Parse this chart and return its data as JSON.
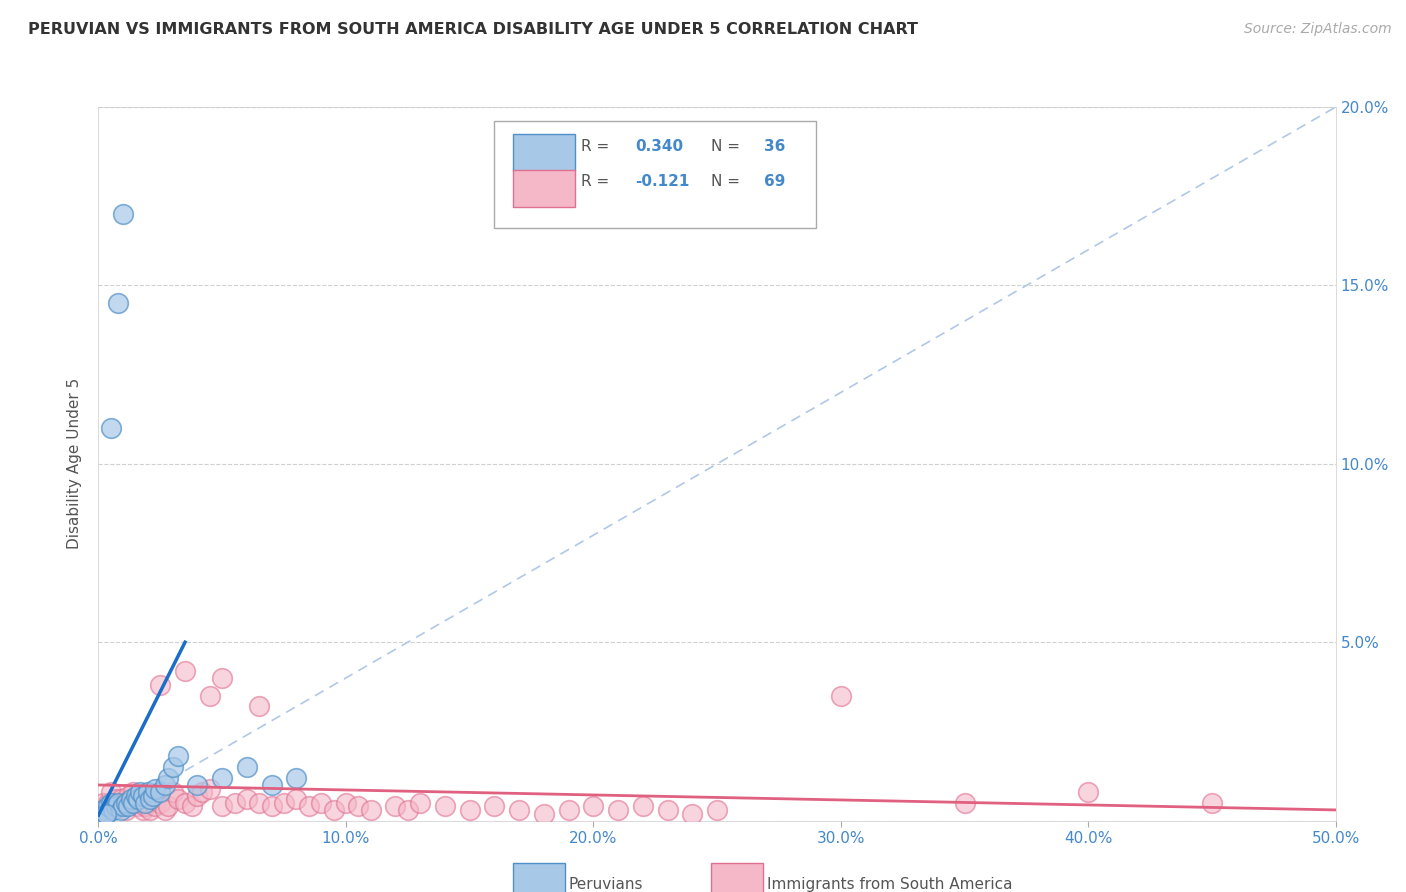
{
  "title": "PERUVIAN VS IMMIGRANTS FROM SOUTH AMERICA DISABILITY AGE UNDER 5 CORRELATION CHART",
  "source": "Source: ZipAtlas.com",
  "ylabel": "Disability Age Under 5",
  "legend_blue_label": "Peruvians",
  "legend_pink_label": "Immigrants from South America",
  "r_blue": 0.34,
  "n_blue": 36,
  "r_pink": -0.121,
  "n_pink": 69,
  "xlim": [
    0,
    50
  ],
  "ylim": [
    0,
    20
  ],
  "background_color": "#ffffff",
  "grid_color": "#d0d0d0",
  "blue_fill": "#a8c8e8",
  "pink_fill": "#f4b8c8",
  "blue_edge": "#5090c8",
  "pink_edge": "#e07090",
  "blue_line_color": "#1a6ec8",
  "pink_line_color": "#e06080",
  "diag_line_color": "#b0c8e8",
  "title_color": "#333333",
  "axis_label_color": "#555555",
  "tick_color": "#4488cc",
  "blue_scatter": [
    [
      0.2,
      0.3
    ],
    [
      0.3,
      0.2
    ],
    [
      0.4,
      0.4
    ],
    [
      0.5,
      0.5
    ],
    [
      0.6,
      0.3
    ],
    [
      0.7,
      0.4
    ],
    [
      0.8,
      0.5
    ],
    [
      0.9,
      0.3
    ],
    [
      1.0,
      0.4
    ],
    [
      1.1,
      0.5
    ],
    [
      1.2,
      0.4
    ],
    [
      1.3,
      0.6
    ],
    [
      1.4,
      0.5
    ],
    [
      1.5,
      0.7
    ],
    [
      1.6,
      0.6
    ],
    [
      1.7,
      0.8
    ],
    [
      1.8,
      0.7
    ],
    [
      1.9,
      0.5
    ],
    [
      2.0,
      0.8
    ],
    [
      2.1,
      0.6
    ],
    [
      2.2,
      0.7
    ],
    [
      2.3,
      0.9
    ],
    [
      2.5,
      0.8
    ],
    [
      2.7,
      1.0
    ],
    [
      2.8,
      1.2
    ],
    [
      3.0,
      1.5
    ],
    [
      3.2,
      1.8
    ],
    [
      0.5,
      11.0
    ],
    [
      0.8,
      14.5
    ],
    [
      1.0,
      17.0
    ],
    [
      0.3,
      0.2
    ],
    [
      4.0,
      1.0
    ],
    [
      5.0,
      1.2
    ],
    [
      6.0,
      1.5
    ],
    [
      7.0,
      1.0
    ],
    [
      8.0,
      1.2
    ]
  ],
  "pink_scatter": [
    [
      0.2,
      0.5
    ],
    [
      0.3,
      0.3
    ],
    [
      0.4,
      0.5
    ],
    [
      0.5,
      0.8
    ],
    [
      0.6,
      0.5
    ],
    [
      0.7,
      0.6
    ],
    [
      0.8,
      0.4
    ],
    [
      0.9,
      0.6
    ],
    [
      1.0,
      0.5
    ],
    [
      1.1,
      0.3
    ],
    [
      1.2,
      0.7
    ],
    [
      1.3,
      0.5
    ],
    [
      1.4,
      0.8
    ],
    [
      1.5,
      0.6
    ],
    [
      1.6,
      0.4
    ],
    [
      1.7,
      0.5
    ],
    [
      1.8,
      0.3
    ],
    [
      1.9,
      0.4
    ],
    [
      2.0,
      0.5
    ],
    [
      2.1,
      0.3
    ],
    [
      2.2,
      0.6
    ],
    [
      2.3,
      0.4
    ],
    [
      2.5,
      0.5
    ],
    [
      2.7,
      0.3
    ],
    [
      2.8,
      0.4
    ],
    [
      3.0,
      0.8
    ],
    [
      3.2,
      0.6
    ],
    [
      3.5,
      0.5
    ],
    [
      3.8,
      0.4
    ],
    [
      4.0,
      0.7
    ],
    [
      4.2,
      0.8
    ],
    [
      4.5,
      0.9
    ],
    [
      5.0,
      0.4
    ],
    [
      5.5,
      0.5
    ],
    [
      6.0,
      0.6
    ],
    [
      6.5,
      0.5
    ],
    [
      7.0,
      0.4
    ],
    [
      7.5,
      0.5
    ],
    [
      8.0,
      0.6
    ],
    [
      8.5,
      0.4
    ],
    [
      9.0,
      0.5
    ],
    [
      9.5,
      0.3
    ],
    [
      10.0,
      0.5
    ],
    [
      10.5,
      0.4
    ],
    [
      11.0,
      0.3
    ],
    [
      12.0,
      0.4
    ],
    [
      12.5,
      0.3
    ],
    [
      13.0,
      0.5
    ],
    [
      14.0,
      0.4
    ],
    [
      15.0,
      0.3
    ],
    [
      16.0,
      0.4
    ],
    [
      17.0,
      0.3
    ],
    [
      18.0,
      0.2
    ],
    [
      19.0,
      0.3
    ],
    [
      20.0,
      0.4
    ],
    [
      21.0,
      0.3
    ],
    [
      22.0,
      0.4
    ],
    [
      23.0,
      0.3
    ],
    [
      24.0,
      0.2
    ],
    [
      25.0,
      0.3
    ],
    [
      3.5,
      4.2
    ],
    [
      5.0,
      4.0
    ],
    [
      2.5,
      3.8
    ],
    [
      4.5,
      3.5
    ],
    [
      6.5,
      3.2
    ],
    [
      30.0,
      3.5
    ],
    [
      35.0,
      0.5
    ],
    [
      40.0,
      0.8
    ],
    [
      45.0,
      0.5
    ]
  ]
}
